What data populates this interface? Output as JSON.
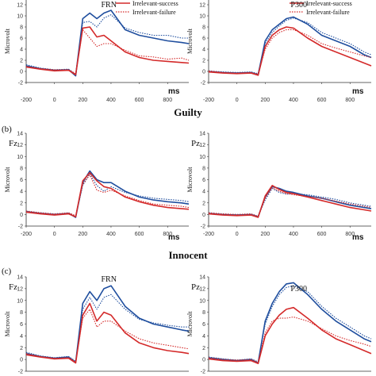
{
  "colors": {
    "success": "#d42a2a",
    "failure": "#d42a2a",
    "relevant_success": "#1f4e9e",
    "relevant_failure": "#1f4e9e",
    "axis": "#333333"
  },
  "rows": [
    {
      "row_label": "",
      "condition_title": "Guilty"
    },
    {
      "row_label": "(b)",
      "condition_title": "Innocent"
    },
    {
      "row_label": "(c)",
      "condition_title": ""
    }
  ],
  "legend": {
    "items": [
      "Irrelevant-success",
      "Irrelevant-failure"
    ]
  },
  "axis_text": {
    "ylabel": "Microvolt",
    "x_unit": "ms"
  },
  "chart_data": [
    {
      "type": "line",
      "panel": "a-Fz",
      "electrode": "",
      "annotation": "FRN",
      "ylabel": "Microvolt",
      "xlabel": "ms",
      "x": [
        -200,
        -100,
        0,
        100,
        150,
        200,
        250,
        300,
        350,
        400,
        500,
        600,
        700,
        800,
        900,
        950
      ],
      "xticks": [
        -200,
        0,
        200,
        400,
        600,
        800
      ],
      "ylim": [
        -2,
        14
      ],
      "yticks": [
        -2,
        0,
        2,
        4,
        6,
        8,
        10,
        12,
        14
      ],
      "series": [
        {
          "name": "",
          "style": "solid",
          "color": "#1f4e9e",
          "values": [
            1.0,
            0.5,
            0.2,
            0.3,
            -0.8,
            9.5,
            10.5,
            9.5,
            10.5,
            11.0,
            7.5,
            6.5,
            6.0,
            5.5,
            5.2,
            5.0
          ]
        },
        {
          "name": "",
          "style": "dotted",
          "color": "#1f4e9e",
          "values": [
            1.2,
            0.6,
            0.3,
            0.4,
            -0.5,
            8.8,
            9.0,
            8.0,
            9.6,
            10.2,
            7.8,
            7.0,
            6.5,
            6.5,
            6.0,
            6.0
          ]
        },
        {
          "name": "Irrelevant-success",
          "style": "solid",
          "color": "#d42a2a",
          "values": [
            0.8,
            0.4,
            0.1,
            0.2,
            -0.6,
            7.8,
            8.0,
            6.2,
            6.5,
            5.5,
            3.5,
            2.5,
            2.0,
            1.8,
            1.6,
            1.5
          ]
        },
        {
          "name": "Irrelevant-failure",
          "style": "dotted",
          "color": "#d42a2a",
          "values": [
            0.9,
            0.5,
            0.3,
            0.3,
            -0.4,
            7.5,
            6.0,
            4.5,
            5.0,
            5.0,
            3.8,
            2.8,
            2.6,
            2.2,
            2.4,
            2.0
          ]
        }
      ]
    },
    {
      "type": "line",
      "panel": "a-Pz",
      "electrode": "",
      "annotation": "P300",
      "ylabel": "Microvolt",
      "xlabel": "ms",
      "x": [
        -200,
        -100,
        0,
        100,
        150,
        200,
        250,
        300,
        350,
        400,
        500,
        600,
        700,
        800,
        900,
        950
      ],
      "xticks": [
        -200,
        0,
        200,
        400,
        600,
        800
      ],
      "ylim": [
        -2,
        14
      ],
      "yticks": [
        -2,
        0,
        2,
        4,
        6,
        8,
        10,
        12,
        14
      ],
      "series": [
        {
          "name": "",
          "style": "solid",
          "color": "#1f4e9e",
          "values": [
            0,
            -0.2,
            -0.3,
            -0.2,
            -0.6,
            5.5,
            7.5,
            8.5,
            9.5,
            9.8,
            8.5,
            6.5,
            5.5,
            4.5,
            3.0,
            2.5
          ]
        },
        {
          "name": "",
          "style": "dotted",
          "color": "#1f4e9e",
          "values": [
            0.1,
            -0.1,
            -0.2,
            -0.1,
            -0.4,
            5.0,
            7.0,
            8.2,
            9.2,
            9.6,
            8.8,
            7.0,
            6.0,
            5.0,
            3.5,
            3.0
          ]
        },
        {
          "name": "",
          "style": "solid",
          "color": "#d42a2a",
          "values": [
            -0.1,
            -0.3,
            -0.4,
            -0.3,
            -0.7,
            4.5,
            6.5,
            7.5,
            8.0,
            7.8,
            6.0,
            4.5,
            3.5,
            2.5,
            1.5,
            1.0
          ]
        },
        {
          "name": "",
          "style": "dotted",
          "color": "#d42a2a",
          "values": [
            0.1,
            -0.2,
            -0.3,
            -0.2,
            -0.5,
            4.0,
            6.0,
            7.0,
            7.5,
            7.5,
            6.5,
            5.0,
            4.2,
            3.5,
            2.8,
            2.5
          ]
        }
      ]
    },
    {
      "type": "line",
      "panel": "b-Fz",
      "electrode": "Fz",
      "annotation": "",
      "ylabel": "Microvolt",
      "xlabel": "ms",
      "x": [
        -200,
        -100,
        0,
        100,
        150,
        200,
        250,
        300,
        350,
        400,
        500,
        600,
        700,
        800,
        900,
        950
      ],
      "xticks": [
        -200,
        0,
        200,
        400,
        600,
        800
      ],
      "ylim": [
        -2,
        14
      ],
      "yticks": [
        -2,
        0,
        2,
        4,
        6,
        8,
        10,
        12,
        14
      ],
      "series": [
        {
          "name": "",
          "style": "solid",
          "color": "#1f4e9e",
          "values": [
            0.5,
            0.2,
            0,
            0.2,
            -0.5,
            5.5,
            7.5,
            6.0,
            5.5,
            5.5,
            4.0,
            3.0,
            2.5,
            2.2,
            2.0,
            1.8
          ]
        },
        {
          "name": "",
          "style": "dotted",
          "color": "#1f4e9e",
          "values": [
            0.6,
            0.3,
            0.1,
            0.2,
            -0.3,
            5.0,
            7.0,
            5.0,
            4.0,
            4.8,
            3.8,
            3.2,
            2.8,
            2.6,
            2.4,
            2.2
          ]
        },
        {
          "name": "",
          "style": "solid",
          "color": "#d42a2a",
          "values": [
            0.4,
            0.1,
            -0.1,
            0.1,
            -0.4,
            5.8,
            7.2,
            5.8,
            4.8,
            4.5,
            3.0,
            2.2,
            1.6,
            1.2,
            1.0,
            0.9
          ]
        },
        {
          "name": "",
          "style": "dotted",
          "color": "#d42a2a",
          "values": [
            0.6,
            0.3,
            0.1,
            0.3,
            -0.2,
            5.2,
            6.8,
            4.2,
            3.8,
            4.2,
            3.2,
            2.4,
            1.8,
            1.6,
            1.4,
            1.2
          ]
        }
      ]
    },
    {
      "type": "line",
      "panel": "b-Pz",
      "electrode": "Pz",
      "annotation": "",
      "ylabel": "Microvolt",
      "xlabel": "ms",
      "x": [
        -200,
        -100,
        0,
        100,
        150,
        200,
        250,
        300,
        350,
        400,
        500,
        600,
        700,
        800,
        900,
        950
      ],
      "xticks": [
        -200,
        0,
        200,
        400,
        600,
        800
      ],
      "ylim": [
        -2,
        14
      ],
      "yticks": [
        -2,
        0,
        2,
        4,
        6,
        8,
        10,
        12,
        14
      ],
      "series": [
        {
          "name": "",
          "style": "solid",
          "color": "#1f4e9e",
          "values": [
            0.2,
            0,
            -0.1,
            0,
            -0.4,
            3.0,
            4.8,
            4.5,
            4.0,
            3.8,
            3.2,
            2.8,
            2.2,
            1.6,
            1.2,
            1.0
          ]
        },
        {
          "name": "",
          "style": "dotted",
          "color": "#1f4e9e",
          "values": [
            0.3,
            0.1,
            0,
            0.1,
            -0.3,
            2.5,
            4.5,
            3.8,
            3.5,
            3.6,
            3.4,
            3.0,
            2.6,
            2.0,
            1.6,
            1.4
          ]
        },
        {
          "name": "",
          "style": "solid",
          "color": "#d42a2a",
          "values": [
            0.1,
            -0.1,
            -0.2,
            -0.1,
            -0.5,
            3.2,
            5.0,
            4.3,
            3.8,
            3.6,
            3.0,
            2.4,
            1.8,
            1.2,
            0.8,
            0.6
          ]
        },
        {
          "name": "",
          "style": "dotted",
          "color": "#d42a2a",
          "values": [
            0.3,
            0.1,
            0,
            0.1,
            -0.3,
            2.8,
            4.6,
            4.0,
            3.6,
            3.4,
            3.1,
            2.8,
            2.3,
            1.8,
            1.4,
            1.2
          ]
        }
      ]
    },
    {
      "type": "line",
      "panel": "c-Fz",
      "electrode": "Fz",
      "annotation": "FRN",
      "ylabel": "Microvolt",
      "xlabel": "",
      "x": [
        -200,
        -100,
        0,
        100,
        150,
        200,
        250,
        300,
        350,
        400,
        500,
        600,
        700,
        800,
        900,
        950
      ],
      "xticks": [
        -200,
        0,
        200,
        400,
        600,
        800
      ],
      "ylim": [
        -2,
        14
      ],
      "yticks": [
        -2,
        0,
        2,
        4,
        6,
        8,
        10,
        12,
        14
      ],
      "series": [
        {
          "name": "",
          "style": "solid",
          "color": "#1f4e9e",
          "values": [
            1.0,
            0.5,
            0.2,
            0.4,
            -0.5,
            9.5,
            11.5,
            10.0,
            12.0,
            12.5,
            9.0,
            7.0,
            6.0,
            5.5,
            5.0,
            4.8
          ]
        },
        {
          "name": "",
          "style": "dotted",
          "color": "#1f4e9e",
          "values": [
            1.2,
            0.6,
            0.3,
            0.5,
            -0.3,
            8.5,
            10.5,
            8.5,
            10.5,
            11.0,
            8.5,
            6.8,
            6.2,
            5.8,
            5.5,
            5.5
          ]
        },
        {
          "name": "",
          "style": "solid",
          "color": "#d42a2a",
          "values": [
            0.8,
            0.4,
            0.1,
            0.2,
            -0.6,
            7.5,
            9.5,
            6.5,
            8.0,
            7.5,
            4.5,
            2.8,
            2.0,
            1.5,
            1.2,
            1.0
          ]
        },
        {
          "name": "",
          "style": "dotted",
          "color": "#d42a2a",
          "values": [
            1.0,
            0.5,
            0.2,
            0.3,
            -0.4,
            7.0,
            8.5,
            5.5,
            6.5,
            6.5,
            4.8,
            3.5,
            2.8,
            2.4,
            2.0,
            1.8
          ]
        }
      ]
    },
    {
      "type": "line",
      "panel": "c-Pz",
      "electrode": "Pz",
      "annotation": "P300",
      "ylabel": "Microvolt",
      "xlabel": "",
      "x": [
        -200,
        -100,
        0,
        100,
        150,
        200,
        250,
        300,
        350,
        400,
        500,
        600,
        700,
        800,
        900,
        950
      ],
      "xticks": [
        -200,
        0,
        200,
        400,
        600,
        800
      ],
      "ylim": [
        -2,
        14
      ],
      "yticks": [
        -2,
        0,
        2,
        4,
        6,
        8,
        10,
        12,
        14
      ],
      "series": [
        {
          "name": "",
          "style": "solid",
          "color": "#1f4e9e",
          "values": [
            0.3,
            0,
            -0.2,
            0,
            -0.6,
            6.5,
            9.5,
            11.5,
            12.8,
            13.0,
            11.0,
            8.5,
            6.5,
            5.0,
            3.5,
            3.0
          ]
        },
        {
          "name": "",
          "style": "dotted",
          "color": "#1f4e9e",
          "values": [
            0.4,
            0.1,
            -0.1,
            0.1,
            -0.4,
            6.0,
            9.0,
            11.0,
            12.2,
            12.5,
            11.5,
            9.0,
            7.0,
            5.5,
            4.0,
            3.5
          ]
        },
        {
          "name": "",
          "style": "solid",
          "color": "#d42a2a",
          "values": [
            0.1,
            -0.2,
            -0.3,
            -0.2,
            -0.7,
            4.0,
            6.0,
            7.5,
            8.5,
            8.8,
            7.0,
            5.0,
            3.5,
            2.5,
            1.5,
            1.0
          ]
        },
        {
          "name": "",
          "style": "dotted",
          "color": "#d42a2a",
          "values": [
            0.3,
            0,
            -0.1,
            0,
            -0.5,
            4.5,
            6.5,
            7.0,
            7.0,
            7.2,
            6.5,
            5.2,
            4.0,
            3.2,
            2.6,
            2.2
          ]
        }
      ]
    }
  ]
}
